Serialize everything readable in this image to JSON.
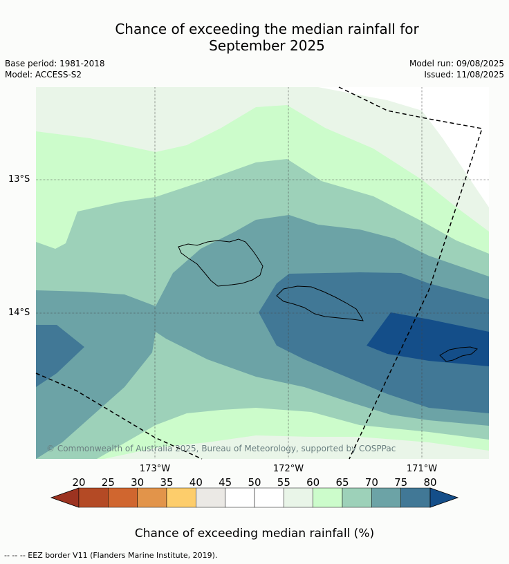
{
  "title_line1": "Chance of exceeding the median rainfall for",
  "title_line2": "September 2025",
  "base_period": "Base period: 1981-2018",
  "model": "Model: ACCESS-S2",
  "model_run": "Model run: 09/08/2025",
  "issued": "Issued: 11/08/2025",
  "copyright": "© Commonwealth of Australia 2025, Bureau of Meteorology, supported by COSPPac",
  "lon_labels": [
    "173°W",
    "172°W",
    "171°W"
  ],
  "lat_labels": [
    "13°S",
    "14°S"
  ],
  "colorbar": {
    "label": "Chance of exceeding median rainfall (%)",
    "ticks": [
      "20",
      "25",
      "30",
      "35",
      "40",
      "45",
      "50",
      "55",
      "60",
      "65",
      "70",
      "75",
      "80"
    ],
    "colors": [
      "#9c3320",
      "#b44a25",
      "#d0662f",
      "#e2944a",
      "#fdcd6b",
      "#ebe9e5",
      "#ffffff",
      "#ffffff",
      "#e9f5e8",
      "#ccfccb",
      "#9dd1b9",
      "#6ca3a6",
      "#417896",
      "#144e89"
    ]
  },
  "footer": "--  --  -- EEZ border V11 (Flanders Marine Institute, 2019)."
}
